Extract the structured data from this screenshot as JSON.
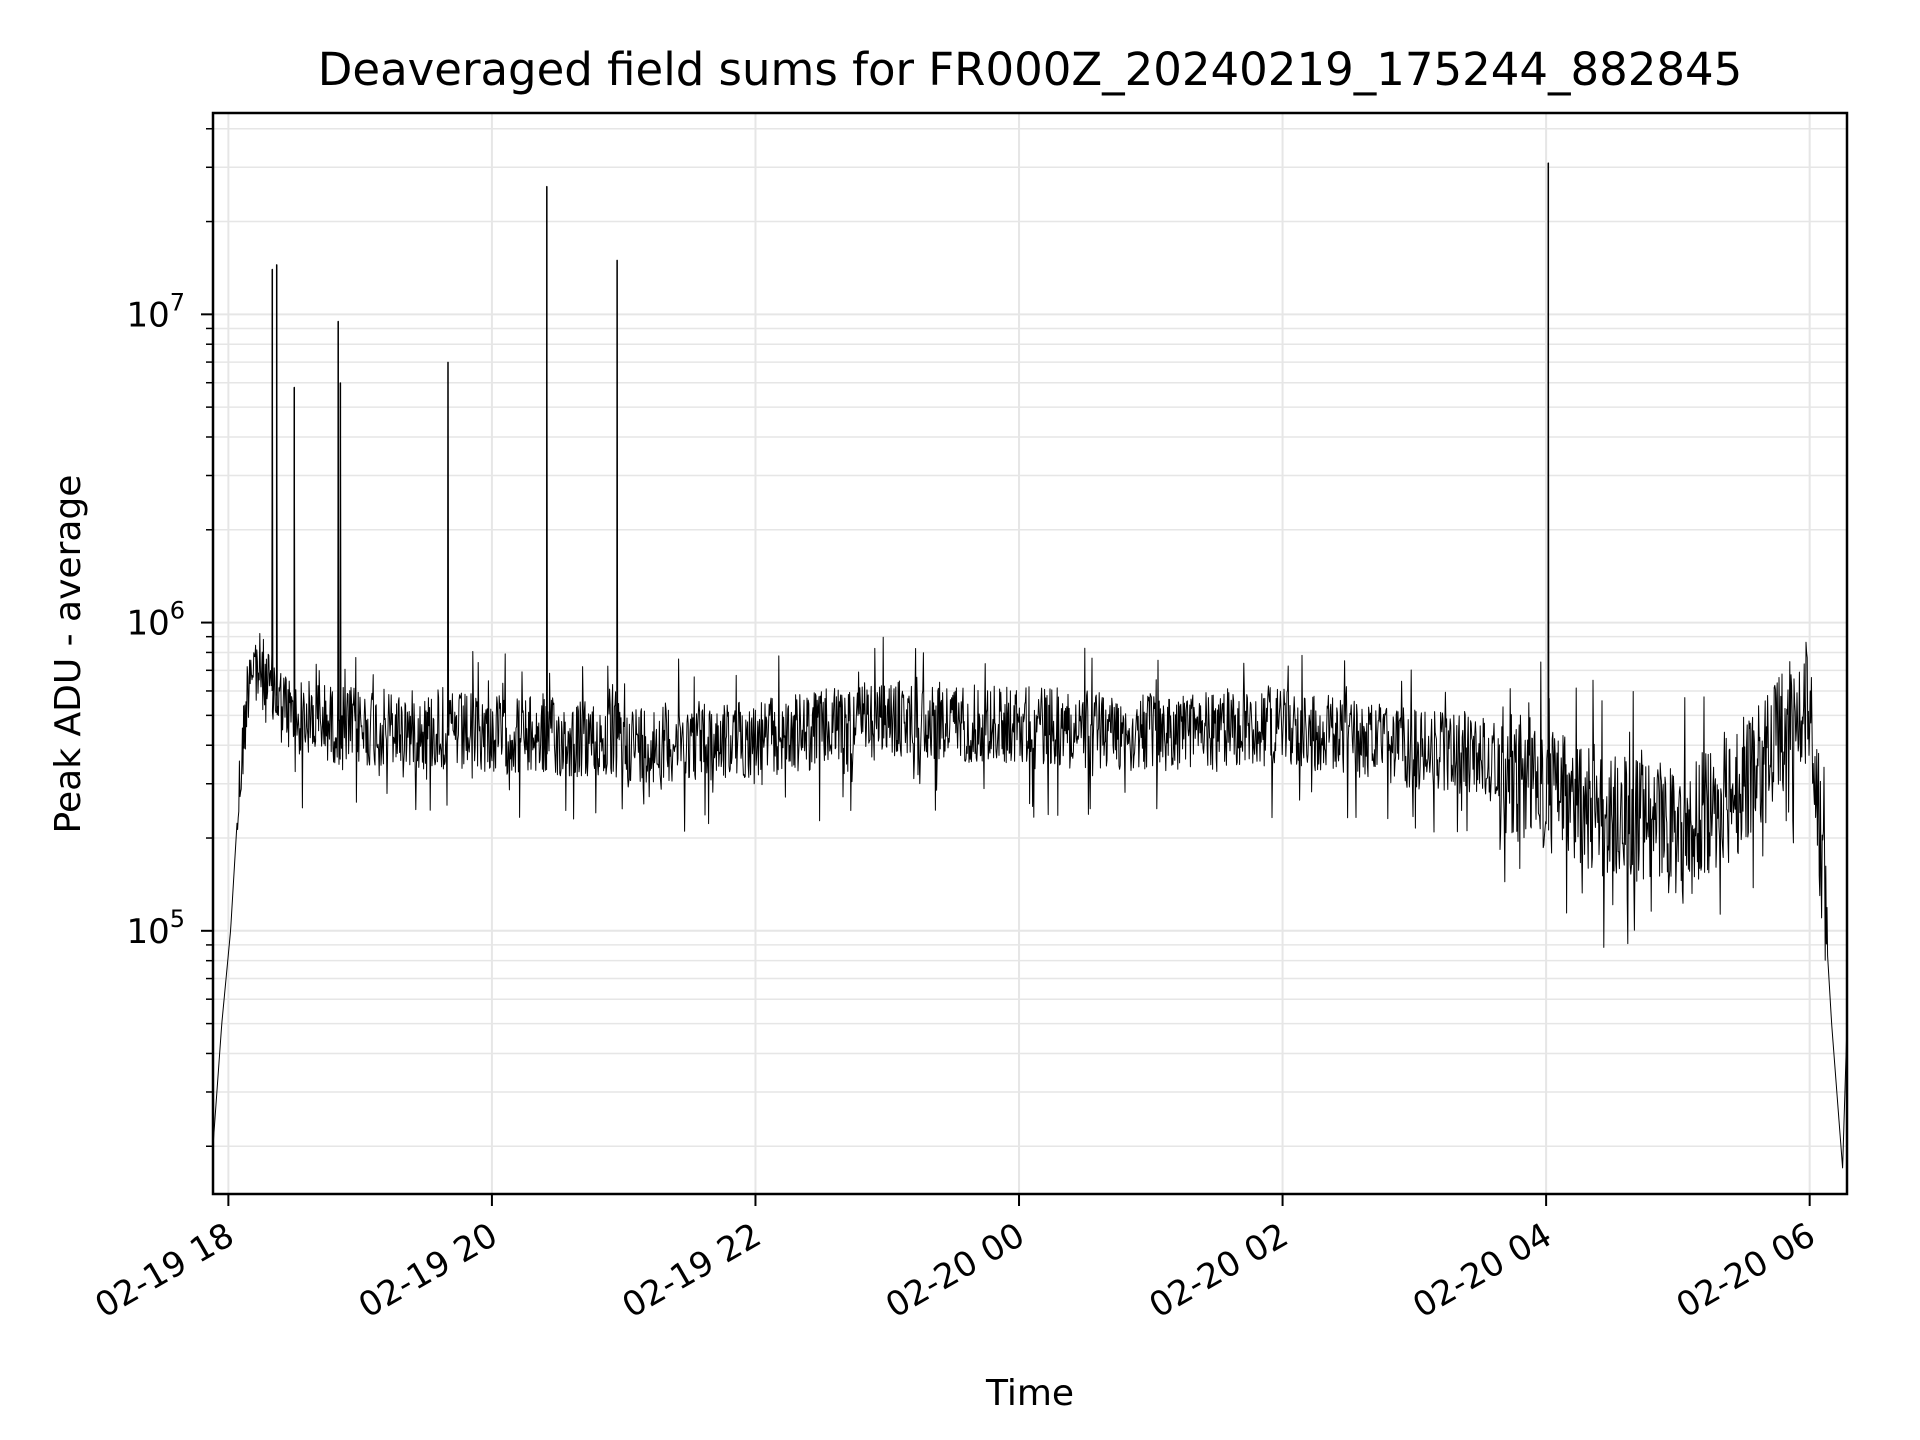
{
  "chart_data": {
    "type": "line",
    "title": "Deaveraged field sums for FR000Z_20240219_175244_882845",
    "xlabel": "Time",
    "ylabel": "Peak ADU - average",
    "yscale": "log",
    "ylim": [
      14000,
      45000000
    ],
    "y_ticks": [
      {
        "base": "10",
        "exp": "5",
        "value": 100000
      },
      {
        "base": "10",
        "exp": "6",
        "value": 1000000
      },
      {
        "base": "10",
        "exp": "7",
        "value": 10000000
      }
    ],
    "xlim": [
      "2024-02-19 17:53",
      "2024-02-20 06:17"
    ],
    "x_ticks": [
      {
        "label": "02-19 18",
        "time": "2024-02-19 18:00"
      },
      {
        "label": "02-19 20",
        "time": "2024-02-19 20:00"
      },
      {
        "label": "02-19 22",
        "time": "2024-02-19 22:00"
      },
      {
        "label": "02-20 00",
        "time": "2024-02-20 00:00"
      },
      {
        "label": "02-20 02",
        "time": "2024-02-20 02:00"
      },
      {
        "label": "02-20 04",
        "time": "2024-02-20 04:00"
      },
      {
        "label": "02-20 06",
        "time": "2024-02-20 06:00"
      }
    ],
    "grid": true,
    "line_color": "#000000",
    "grid_color": "#e6e6e6",
    "series": [
      {
        "x": [
          "2024-02-19 17:53",
          "2024-02-19 17:57",
          "2024-02-19 18:01",
          "2024-02-19 18:05",
          "2024-02-19 18:10",
          "2024-02-19 18:15",
          "2024-02-19 18:20",
          "2024-02-19 18:25",
          "2024-02-19 18:30",
          "2024-02-19 18:38",
          "2024-02-19 18:50",
          "2024-02-19 19:00",
          "2024-02-19 19:30",
          "2024-02-19 20:00",
          "2024-02-19 21:00",
          "2024-02-19 22:00",
          "2024-02-19 23:00",
          "2024-02-20 00:00",
          "2024-02-20 01:00",
          "2024-02-20 02:00",
          "2024-02-20 03:00",
          "2024-02-20 03:30",
          "2024-02-20 04:00",
          "2024-02-20 04:30",
          "2024-02-20 05:00",
          "2024-02-20 05:30",
          "2024-02-20 06:00",
          "2024-02-20 06:05",
          "2024-02-20 06:10",
          "2024-02-20 06:15",
          "2024-02-20 06:17"
        ],
        "y": [
          20000,
          50000,
          100000,
          300000,
          800000,
          700000,
          600000,
          550000,
          500000,
          500000,
          480000,
          470000,
          460000,
          450000,
          420000,
          430000,
          500000,
          480000,
          450000,
          480000,
          400000,
          380000,
          300000,
          250000,
          220000,
          300000,
          600000,
          200000,
          50000,
          17000,
          50000
        ]
      }
    ],
    "spikes": [
      {
        "x": "2024-02-19 18:20",
        "y": 14000000
      },
      {
        "x": "2024-02-19 18:22",
        "y": 14500000
      },
      {
        "x": "2024-02-19 18:30",
        "y": 5800000
      },
      {
        "x": "2024-02-19 18:50",
        "y": 9500000
      },
      {
        "x": "2024-02-19 18:51",
        "y": 6000000
      },
      {
        "x": "2024-02-19 19:40",
        "y": 7000000
      },
      {
        "x": "2024-02-19 20:25",
        "y": 26000000
      },
      {
        "x": "2024-02-19 20:57",
        "y": 15000000
      },
      {
        "x": "2024-02-20 04:01",
        "y": 31000000
      }
    ]
  }
}
